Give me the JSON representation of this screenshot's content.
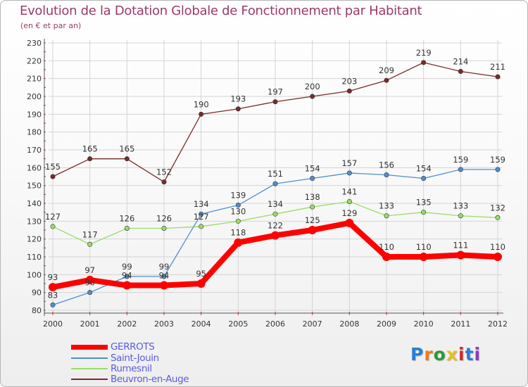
{
  "header": {
    "title": "Evolution de la Dotation Globale de Fonctionnement par Habitant",
    "subtitle": "(en € et par an)"
  },
  "chart_data": {
    "type": "line",
    "title": "Evolution de la Dotation Globale de Fonctionnement par Habitant",
    "subtitle": "(en € et par an)",
    "x": [
      "2000",
      "2001",
      "2002",
      "2003",
      "2004",
      "2005",
      "2006",
      "2007",
      "2008",
      "2009",
      "2010",
      "2011",
      "2012"
    ],
    "ylim": [
      80,
      230
    ],
    "yticks": [
      "80",
      "90",
      "100",
      "110",
      "120",
      "130",
      "140",
      "150",
      "160",
      "170",
      "180",
      "190",
      "200",
      "210",
      "220",
      "230"
    ],
    "grid": true,
    "legend_position": "bottom-left",
    "series": [
      {
        "name": "GERROTS",
        "color": "#ff0000",
        "values": [
          93,
          97,
          94,
          94,
          95,
          118,
          122,
          125,
          129,
          110,
          110,
          111,
          110
        ],
        "labels": [
          "93",
          "97",
          "94",
          "94",
          "95",
          "118",
          "122",
          "125",
          "129",
          "110",
          "110",
          "111",
          "110"
        ]
      },
      {
        "name": "Saint-Jouin",
        "color": "#4d8fd1",
        "values": [
          83,
          90,
          99,
          99,
          134,
          139,
          151,
          154,
          157,
          156,
          154,
          159,
          159
        ],
        "labels": [
          "83",
          "90",
          "99",
          "99",
          "134",
          "139",
          "151",
          "154",
          "157",
          "156",
          "154",
          "159",
          "159"
        ]
      },
      {
        "name": "Rumesnil",
        "color": "#99dd66",
        "values": [
          127,
          117,
          126,
          126,
          127,
          130,
          134,
          138,
          141,
          133,
          135,
          133,
          132
        ],
        "labels": [
          "127",
          "117",
          "126",
          "126",
          "127",
          "130",
          "134",
          "138",
          "141",
          "133",
          "135",
          "133",
          "132"
        ]
      },
      {
        "name": "Beuvron-en-Auge",
        "color": "#7a2a2a",
        "values": [
          155,
          165,
          165,
          152,
          190,
          193,
          197,
          200,
          203,
          209,
          219,
          214,
          211
        ],
        "labels": [
          "155",
          "165",
          "165",
          "152",
          "190",
          "193",
          "197",
          "200",
          "203",
          "209",
          "219",
          "214",
          "211"
        ]
      }
    ]
  },
  "legend": {
    "items": [
      {
        "label": "GERROTS"
      },
      {
        "label": "Saint-Jouin"
      },
      {
        "label": "Rumesnil"
      },
      {
        "label": "Beuvron-en-Auge"
      }
    ]
  },
  "logo": {
    "text": "Proxiti",
    "colors": [
      "#2a7fd0",
      "#e87d1e",
      "#2a9a3a",
      "#e8c020",
      "#d02a2a",
      "#2a7fd0",
      "#8a3ac0"
    ]
  }
}
